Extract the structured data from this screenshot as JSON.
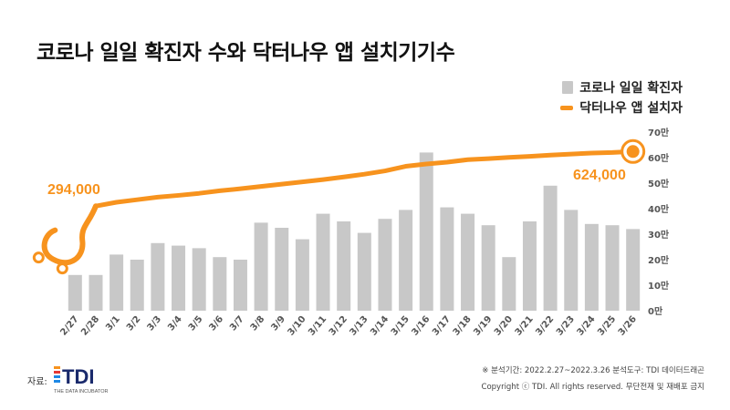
{
  "title": "코로나 일일 확진자 수와 닥터나우 앱 설치기기수",
  "legend": {
    "bars": "코로나 일일 확진자",
    "line": "닥터나우 앱 설치자"
  },
  "colors": {
    "bar": "#c8c8c8",
    "line": "#f7931e",
    "text": "#111111"
  },
  "chart_data": {
    "type": "bar",
    "categories": [
      "2/27",
      "2/28",
      "3/1",
      "3/2",
      "3/3",
      "3/4",
      "3/5",
      "3/6",
      "3/7",
      "3/8",
      "3/9",
      "3/10",
      "3/11",
      "3/12",
      "3/13",
      "3/14",
      "3/15",
      "3/16",
      "3/17",
      "3/18",
      "3/19",
      "3/20",
      "3/21",
      "3/22",
      "3/23",
      "3/24",
      "3/25",
      "3/26"
    ],
    "series": [
      {
        "name": "코로나 일일 확진자",
        "type": "bar",
        "values": [
          140000,
          140000,
          220000,
          200000,
          265000,
          255000,
          245000,
          210000,
          200000,
          345000,
          325000,
          280000,
          380000,
          350000,
          305000,
          360000,
          395000,
          620000,
          405000,
          380000,
          335000,
          210000,
          350000,
          490000,
          395000,
          340000,
          335000,
          320000
        ]
      },
      {
        "name": "닥터나우 앱 설치자",
        "type": "line",
        "values": [
          294000,
          410000,
          425000,
          435000,
          445000,
          452000,
          460000,
          470000,
          478000,
          487000,
          496000,
          505000,
          514000,
          524000,
          535000,
          548000,
          566000,
          575000,
          582000,
          592000,
          596000,
          601000,
          605000,
          610000,
          614000,
          618000,
          620000,
          624000
        ]
      }
    ],
    "y_ticks": [
      "0만",
      "10만",
      "20만",
      "30만",
      "40만",
      "50만",
      "60만",
      "70만"
    ],
    "ylim": [
      0,
      700000
    ],
    "annotations": {
      "start": "294,000",
      "end": "624,000"
    },
    "grid": false,
    "legend_position": "top-right"
  },
  "footer": {
    "source_label": "자료:",
    "logo_text": "TDI",
    "logo_sub": "THE DATA INCUBATOR",
    "period": "※ 분석기간: 2022.2.27~2022.3.26 분석도구: TDI 데이터드래곤",
    "copyright": "Copyright ⓒ TDI. All rights reserved. 무단전재 및 재배포 금지"
  }
}
